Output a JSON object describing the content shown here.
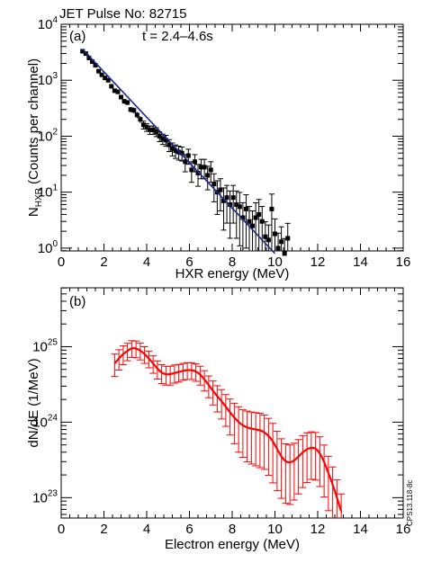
{
  "figure": {
    "header": "JET Pulse No: 82715",
    "side_code": "CPS13.118-8c"
  },
  "chart_data": [
    {
      "panel": "(a)",
      "type": "scatter",
      "annotation": "t = 2.4–4.6s",
      "xlabel": "HXR energy (MeV)",
      "ylabel": {
        "main": "N",
        "sub": "HXR",
        "rest": " (Counts per channel)"
      },
      "xlim": [
        0,
        16
      ],
      "ylim_log10": [
        -0.05,
        4
      ],
      "y_scale": "log",
      "x_ticks": [
        "0",
        "2",
        "4",
        "6",
        "8",
        "10",
        "12",
        "14",
        "16"
      ],
      "y_ticks": [
        {
          "base": "10",
          "exp": "0"
        },
        {
          "base": "10",
          "exp": "1"
        },
        {
          "base": "10",
          "exp": "2"
        },
        {
          "base": "10",
          "exp": "3"
        },
        {
          "base": "10",
          "exp": "4"
        }
      ],
      "points": {
        "x": [
          1.0,
          1.15,
          1.3,
          1.45,
          1.6,
          1.75,
          1.9,
          2.05,
          2.2,
          2.35,
          2.5,
          2.65,
          2.8,
          2.95,
          3.1,
          3.25,
          3.4,
          3.55,
          3.7,
          3.85,
          4.0,
          4.15,
          4.3,
          4.45,
          4.6,
          4.75,
          4.9,
          5.05,
          5.2,
          5.35,
          5.5,
          5.65,
          5.8,
          5.95,
          6.1,
          6.25,
          6.4,
          6.55,
          6.7,
          6.85,
          7.0,
          7.15,
          7.3,
          7.45,
          7.6,
          7.75,
          7.9,
          8.05,
          8.2,
          8.35,
          8.5,
          8.65,
          8.8,
          8.95,
          9.1,
          9.25,
          9.4,
          9.55,
          9.7,
          9.85,
          10.0,
          10.15,
          10.3,
          10.45,
          10.6
        ],
        "y": [
          3300,
          3000,
          2500,
          2150,
          1850,
          1450,
          1250,
          1100,
          1000,
          780,
          650,
          620,
          500,
          420,
          400,
          300,
          290,
          240,
          200,
          160,
          145,
          130,
          130,
          120,
          100,
          90,
          85,
          70,
          60,
          55,
          52,
          50,
          35,
          45,
          25,
          35,
          22,
          28,
          28,
          20,
          25,
          14,
          10,
          11,
          7,
          8,
          6,
          8,
          6,
          5.5,
          3.5,
          5,
          3,
          2.5,
          3.5,
          4,
          3,
          1.6,
          1.4,
          5,
          1.8,
          1.0,
          1.3,
          0.8,
          1.5
        ],
        "yerr_rel": [
          0.04,
          0.04,
          0.04,
          0.04,
          0.05,
          0.05,
          0.06,
          0.06,
          0.06,
          0.07,
          0.08,
          0.08,
          0.09,
          0.1,
          0.1,
          0.11,
          0.12,
          0.13,
          0.14,
          0.16,
          0.16,
          0.17,
          0.17,
          0.18,
          0.2,
          0.21,
          0.22,
          0.24,
          0.26,
          0.27,
          0.28,
          0.28,
          0.34,
          0.3,
          0.4,
          0.34,
          0.42,
          0.38,
          0.38,
          0.45,
          0.4,
          0.52,
          0.6,
          0.58,
          0.7,
          0.65,
          0.75,
          0.65,
          0.75,
          0.8,
          0.85,
          0.8,
          0.85,
          0.85,
          0.85,
          0.85,
          0.85,
          0.85,
          0.85,
          0.85,
          0.85,
          0.85,
          0.85,
          0.85,
          0.85
        ]
      },
      "fit_line": {
        "x": [
          1.0,
          10.0
        ],
        "y": [
          3600,
          0.8
        ],
        "color": "#1c2a8c"
      }
    },
    {
      "panel": "(b)",
      "type": "line",
      "xlabel": "Electron energy (MeV)",
      "ylabel": "dN/dE (1/MeV)",
      "xlim": [
        0,
        16
      ],
      "ylim_log10": [
        22.73,
        25.78
      ],
      "y_scale": "log",
      "x_ticks": [
        "0",
        "2",
        "4",
        "6",
        "8",
        "10",
        "12",
        "14",
        "16"
      ],
      "y_ticks": [
        {
          "base": "10",
          "exp": "23"
        },
        {
          "base": "10",
          "exp": "24"
        },
        {
          "base": "10",
          "exp": "25"
        }
      ],
      "series": {
        "color": "#ff0000",
        "x": [
          2.5,
          2.7,
          2.9,
          3.1,
          3.3,
          3.5,
          3.7,
          3.9,
          4.1,
          4.3,
          4.5,
          4.7,
          4.9,
          5.1,
          5.3,
          5.5,
          5.7,
          5.9,
          6.1,
          6.3,
          6.5,
          6.7,
          6.9,
          7.1,
          7.3,
          7.5,
          7.7,
          7.9,
          8.1,
          8.3,
          8.5,
          8.7,
          8.9,
          9.1,
          9.3,
          9.5,
          9.7,
          9.9,
          10.1,
          10.3,
          10.5,
          10.7,
          10.9,
          11.1,
          11.3,
          11.5,
          11.7,
          11.9,
          12.1,
          12.3,
          12.5,
          12.7,
          12.9,
          13.1
        ],
        "y": [
          6e+24,
          7e+24,
          8e+24,
          8.8e+24,
          9.6e+24,
          9.5e+24,
          8.9e+24,
          8e+24,
          7e+24,
          6e+24,
          5.1e+24,
          4.5e+24,
          4.3e+24,
          4.3e+24,
          4.5e+24,
          4.6e+24,
          4.8e+24,
          4.9e+24,
          4.9e+24,
          4.7e+24,
          4.3e+24,
          3.7e+24,
          3.1e+24,
          2.6e+24,
          2.2e+24,
          1.9e+24,
          1.6e+24,
          1.35e+24,
          1.15e+24,
          1e+24,
          9e+23,
          8.5e+23,
          8.2e+23,
          8e+23,
          7.8e+23,
          7.4e+23,
          6.6e+23,
          5.6e+23,
          4.4e+23,
          3.5e+23,
          3e+23,
          2.9e+23,
          3.1e+23,
          3.5e+23,
          4e+23,
          4.4e+23,
          4.6e+23,
          4.5e+23,
          3.9e+23,
          3e+23,
          2.1e+23,
          1.5e+23,
          1e+23,
          6.5e+22
        ],
        "yerr_rel": [
          0.33,
          0.3,
          0.28,
          0.26,
          0.25,
          0.25,
          0.25,
          0.25,
          0.25,
          0.26,
          0.27,
          0.28,
          0.28,
          0.28,
          0.27,
          0.26,
          0.25,
          0.25,
          0.25,
          0.26,
          0.28,
          0.3,
          0.32,
          0.35,
          0.38,
          0.42,
          0.45,
          0.5,
          0.55,
          0.6,
          0.62,
          0.65,
          0.66,
          0.67,
          0.68,
          0.68,
          0.7,
          0.72,
          0.72,
          0.72,
          0.72,
          0.72,
          0.7,
          0.68,
          0.66,
          0.64,
          0.62,
          0.62,
          0.64,
          0.66,
          0.68,
          0.7,
          0.72,
          0.72
        ]
      }
    }
  ]
}
